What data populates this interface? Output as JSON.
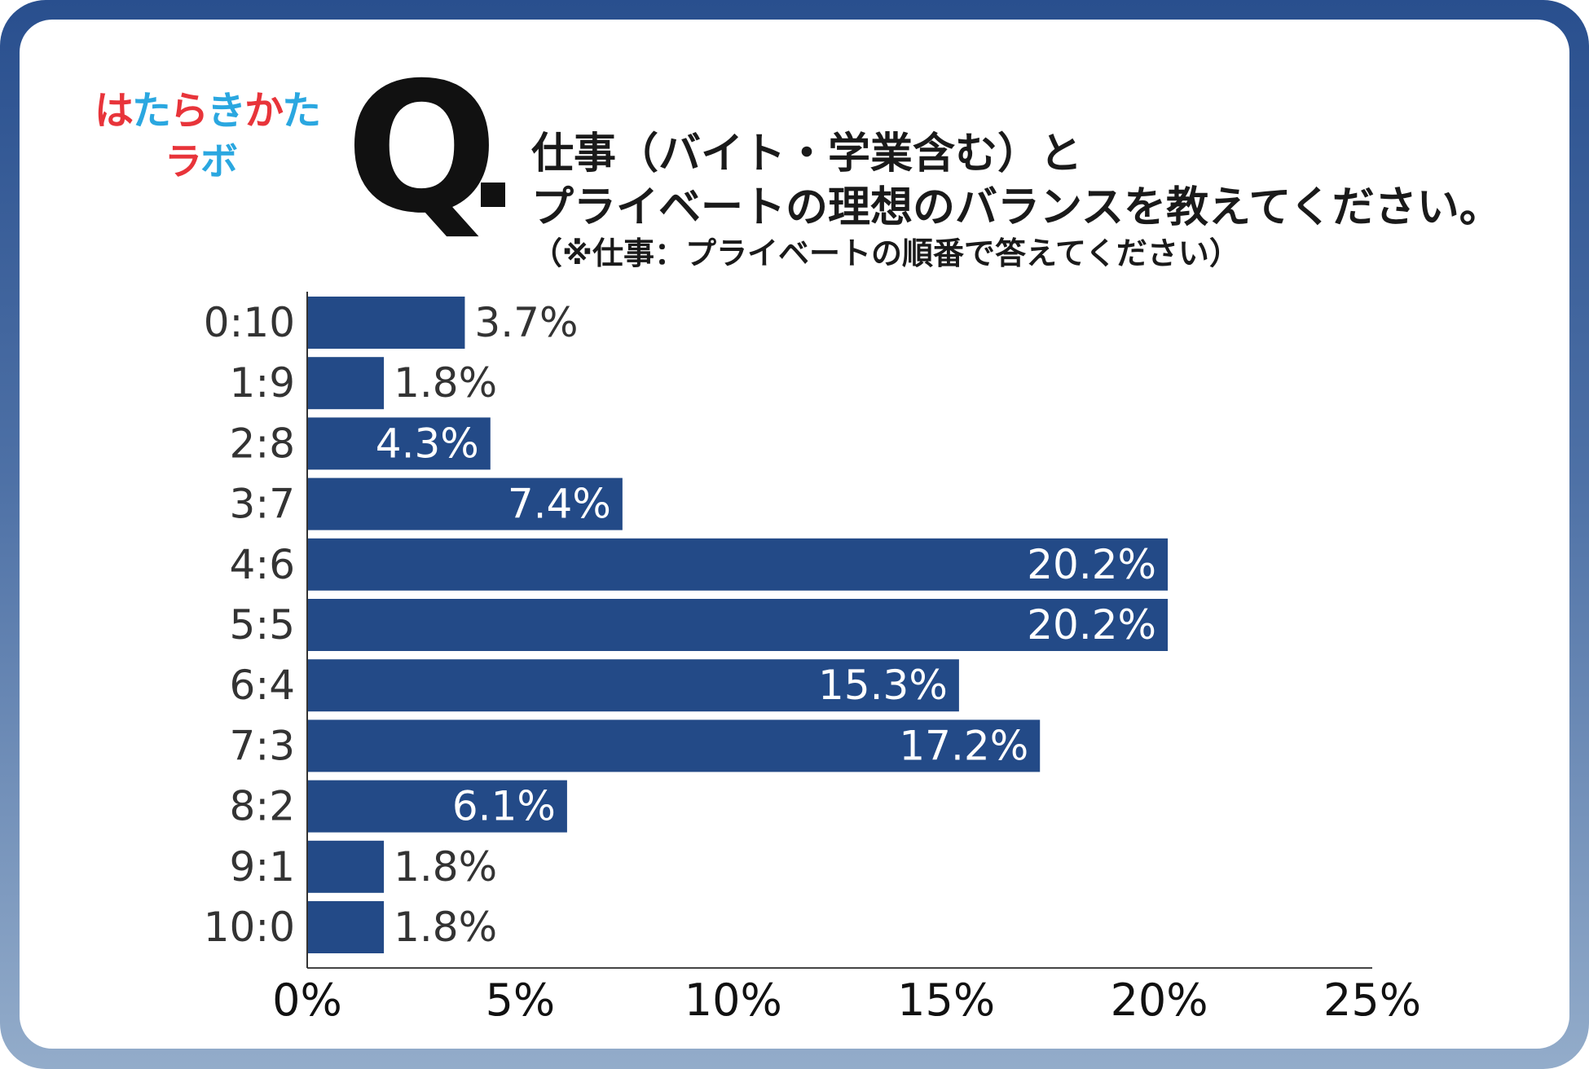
{
  "logo": {
    "line1": [
      "は",
      "た",
      "ら",
      "き",
      "か",
      "た"
    ],
    "line2": [
      "ラ",
      "ボ"
    ],
    "line1_colors": [
      "#e8343a",
      "#2aa7e0",
      "#e8343a",
      "#2aa7e0",
      "#e8343a",
      "#2aa7e0"
    ],
    "line2_colors": [
      "#e8343a",
      "#2aa7e0"
    ]
  },
  "question": {
    "mark": "Q",
    "line1": "仕事（バイト・学業含む）と",
    "line2": "プライベートの理想のバランスを教えてください。",
    "note": "（※仕事：プライベートの順番で答えてください）"
  },
  "chart_data": {
    "type": "bar",
    "orientation": "horizontal",
    "categories": [
      "0:10",
      "1:9",
      "2:8",
      "3:7",
      "4:6",
      "5:5",
      "6:4",
      "7:3",
      "8:2",
      "9:1",
      "10:0"
    ],
    "values": [
      3.7,
      1.8,
      4.3,
      7.4,
      20.2,
      20.2,
      15.3,
      17.2,
      6.1,
      1.8,
      1.8
    ],
    "value_labels": [
      "3.7%",
      "1.8%",
      "4.3%",
      "7.4%",
      "20.2%",
      "20.2%",
      "15.3%",
      "17.2%",
      "6.1%",
      "1.8%",
      "1.8%"
    ],
    "xticks": [
      0,
      5,
      10,
      15,
      20,
      25
    ],
    "xtick_labels": [
      "0%",
      "5%",
      "10%",
      "15%",
      "20%",
      "25%"
    ],
    "xlim": [
      0,
      25
    ],
    "grid": false,
    "bar_color": "#234a87"
  }
}
